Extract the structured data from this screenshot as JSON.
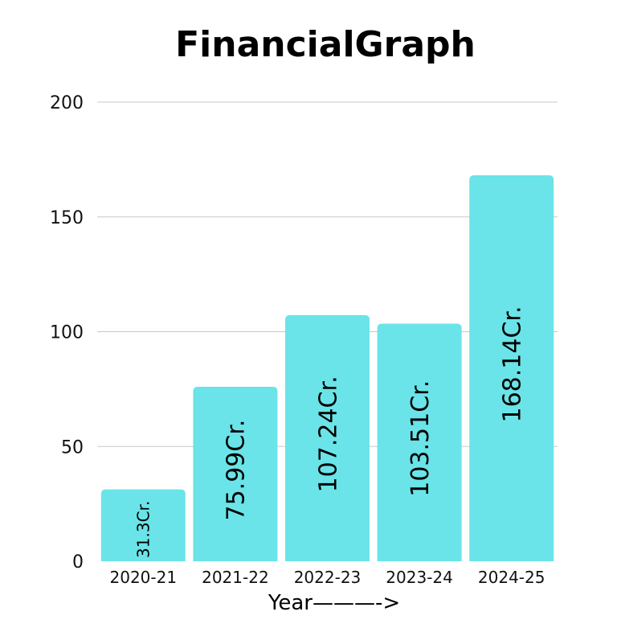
{
  "chart_data": {
    "type": "bar",
    "title": "FinancialGraph",
    "xlabel": "Year———->",
    "ylabel": "",
    "categories": [
      "2020-21",
      "2021-22",
      "2022-23",
      "2023-24",
      "2024-25"
    ],
    "values": [
      31.3,
      75.99,
      107.24,
      103.51,
      168.14
    ],
    "data_labels": [
      "31.3Cr.",
      "75.99Cr.",
      "107.24Cr.",
      "103.51Cr.",
      "168.14Cr."
    ],
    "ylim": [
      0,
      200
    ],
    "yticks": [
      0,
      50,
      100,
      150,
      200
    ],
    "ytick_labels": [
      "0",
      "50",
      "100",
      "150",
      "200"
    ],
    "grid": true,
    "legend": "none",
    "bar_color": "#6ae4e8",
    "data_label_orientation": "vertical"
  }
}
